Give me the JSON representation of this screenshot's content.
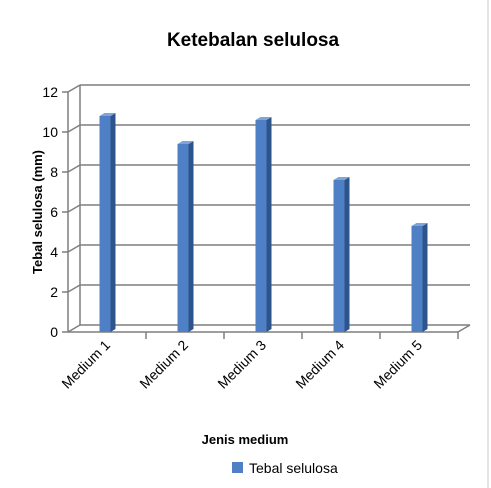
{
  "chart_data": {
    "type": "bar",
    "title": "Ketebalan selulosa",
    "xlabel": "Jenis medium",
    "ylabel": "Tebal selulosa (mm)",
    "categories": [
      "Medium 1",
      "Medium 2",
      "Medium 3",
      "Medium 4",
      "Medium 5"
    ],
    "series": [
      {
        "name": "Tebal selulosa",
        "values": [
          10.8,
          9.4,
          10.6,
          7.6,
          5.3
        ]
      }
    ],
    "ylim": [
      0,
      12
    ],
    "yticks": [
      "0",
      "2",
      "4",
      "6",
      "8",
      "10",
      "12"
    ],
    "grid": true,
    "legend_position": "bottom",
    "colors": {
      "bar_front": "#4F7FC4",
      "bar_side": "#2E548C",
      "bar_top": "#7FA4D8",
      "grid": "#7f7f7f"
    }
  }
}
